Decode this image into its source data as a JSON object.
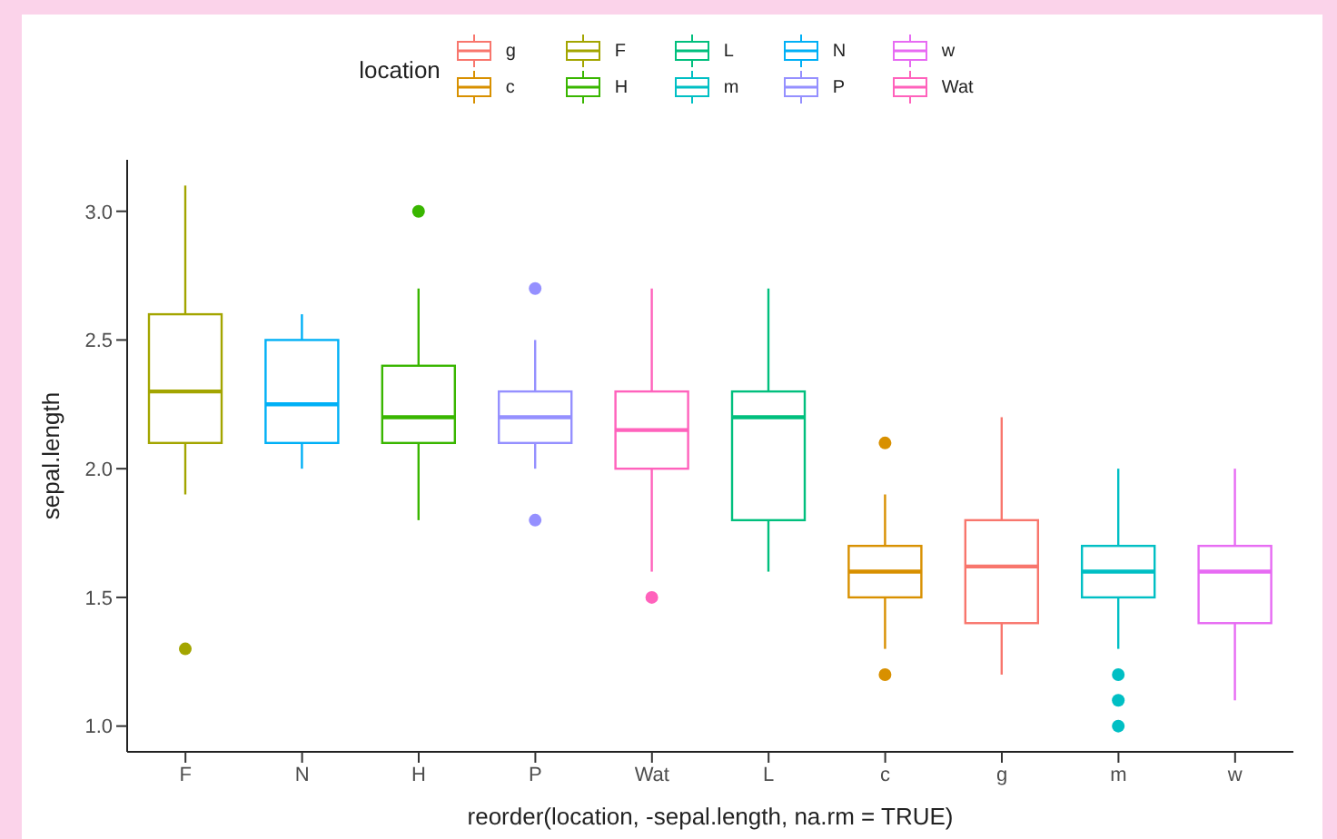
{
  "chart_data": {
    "type": "box",
    "xlabel": "reorder(location, -sepal.length, na.rm = TRUE)",
    "ylabel": "sepal.length",
    "legend_title": "location",
    "legend": "top",
    "categories": [
      "F",
      "N",
      "H",
      "P",
      "Wat",
      "L",
      "c",
      "g",
      "m",
      "w"
    ],
    "ylim": [
      0.9,
      3.2
    ],
    "yticks": [
      {
        "value": 1,
        "label": "1.0"
      },
      {
        "value": 1.5,
        "label": "1.5"
      },
      {
        "value": 2,
        "label": "2.0"
      },
      {
        "value": 2.5,
        "label": "2.5"
      },
      {
        "value": 3,
        "label": "3.0"
      }
    ],
    "grid": false,
    "series": [
      {
        "name": "g",
        "color": "#f8766d",
        "boxes": [
          null,
          null,
          null,
          null,
          null,
          null,
          null,
          {
            "low": 1.2,
            "q1": 1.4,
            "median": 1.62,
            "q3": 1.8,
            "high": 2.2
          },
          null,
          null
        ]
      },
      {
        "name": "c",
        "color": "#d89000",
        "boxes": [
          null,
          null,
          null,
          null,
          null,
          null,
          {
            "low": 1.3,
            "q1": 1.5,
            "median": 1.6,
            "q3": 1.7,
            "high": 1.9,
            "outliers": [
              2.1,
              1.2
            ]
          },
          null,
          null,
          null
        ]
      },
      {
        "name": "F",
        "color": "#a3a500",
        "boxes": [
          {
            "low": 1.9,
            "q1": 2.1,
            "median": 2.3,
            "q3": 2.6,
            "high": 3.1,
            "outliers": [
              1.3
            ]
          },
          null,
          null,
          null,
          null,
          null,
          null,
          null,
          null,
          null
        ]
      },
      {
        "name": "H",
        "color": "#39b600",
        "boxes": [
          null,
          null,
          {
            "low": 1.8,
            "q1": 2.1,
            "median": 2.2,
            "q3": 2.4,
            "high": 2.7,
            "outliers": [
              3.0
            ]
          },
          null,
          null,
          null,
          null,
          null,
          null,
          null
        ]
      },
      {
        "name": "L",
        "color": "#00bf7d",
        "boxes": [
          null,
          null,
          null,
          null,
          null,
          {
            "low": 1.6,
            "q1": 1.8,
            "median": 2.2,
            "q3": 2.3,
            "high": 2.7
          },
          null,
          null,
          null,
          null
        ]
      },
      {
        "name": "m",
        "color": "#00bfc4",
        "boxes": [
          null,
          null,
          null,
          null,
          null,
          null,
          null,
          null,
          {
            "low": 1.3,
            "q1": 1.5,
            "median": 1.6,
            "q3": 1.7,
            "high": 2.0,
            "outliers": [
              1.2,
              1.1,
              1.0
            ]
          },
          null
        ]
      },
      {
        "name": "N",
        "color": "#00b0f6",
        "boxes": [
          null,
          {
            "low": 2.0,
            "q1": 2.1,
            "median": 2.25,
            "q3": 2.5,
            "high": 2.6
          },
          null,
          null,
          null,
          null,
          null,
          null,
          null,
          null
        ]
      },
      {
        "name": "P",
        "color": "#9590ff",
        "boxes": [
          null,
          null,
          null,
          {
            "low": 2.0,
            "q1": 2.1,
            "median": 2.2,
            "q3": 2.3,
            "high": 2.5,
            "outliers": [
              2.7,
              1.8
            ]
          },
          null,
          null,
          null,
          null,
          null,
          null
        ]
      },
      {
        "name": "w",
        "color": "#e76bf3",
        "boxes": [
          null,
          null,
          null,
          null,
          null,
          null,
          null,
          null,
          null,
          {
            "low": 1.1,
            "q1": 1.4,
            "median": 1.6,
            "q3": 1.7,
            "high": 2.0
          }
        ]
      },
      {
        "name": "Wat",
        "color": "#ff62bc",
        "boxes": [
          null,
          null,
          null,
          null,
          {
            "low": 1.6,
            "q1": 2.0,
            "median": 2.15,
            "q3": 2.3,
            "high": 2.7,
            "outliers": [
              1.5
            ]
          },
          null,
          null,
          null,
          null,
          null
        ]
      }
    ]
  }
}
